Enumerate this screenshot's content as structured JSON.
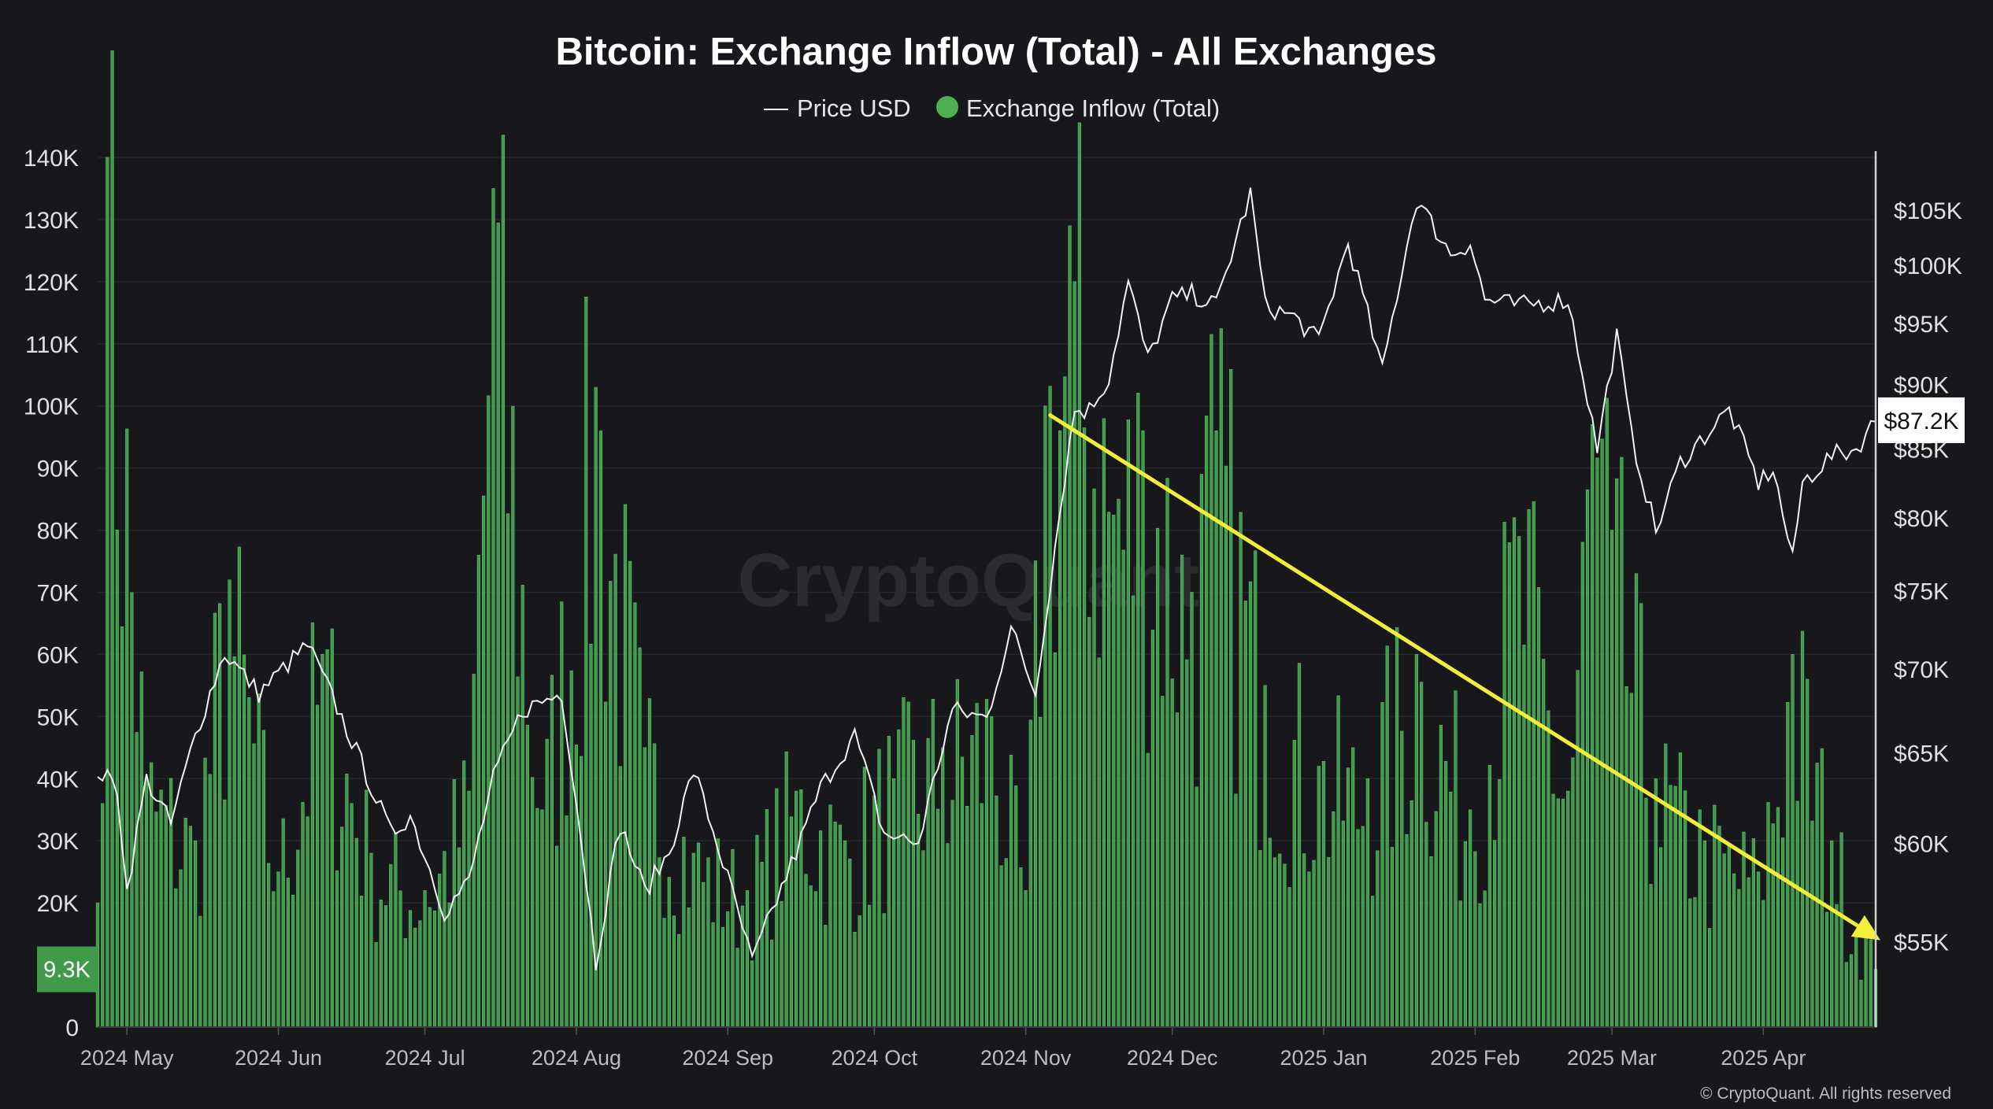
{
  "chart_data": {
    "type": "bar",
    "title": "Bitcoin: Exchange Inflow (Total) - All Exchanges",
    "legend": [
      {
        "name": "Price USD",
        "marker": "line",
        "color": "#ffffff"
      },
      {
        "name": "Exchange Inflow (Total)",
        "marker": "dot",
        "color": "#4caf50"
      }
    ],
    "watermark": "CryptoQuant",
    "copyright": "© CryptoQuant. All rights reserved",
    "left_axis": {
      "range": [
        0,
        140000
      ],
      "ticks": [
        {
          "value": 0,
          "label": "0"
        },
        {
          "value": 20000,
          "label": "20K"
        },
        {
          "value": 30000,
          "label": "30K"
        },
        {
          "value": 40000,
          "label": "40K"
        },
        {
          "value": 50000,
          "label": "50K"
        },
        {
          "value": 60000,
          "label": "60K"
        },
        {
          "value": 70000,
          "label": "70K"
        },
        {
          "value": 80000,
          "label": "80K"
        },
        {
          "value": 90000,
          "label": "90K"
        },
        {
          "value": 100000,
          "label": "100K"
        },
        {
          "value": 110000,
          "label": "110K"
        },
        {
          "value": 120000,
          "label": "120K"
        },
        {
          "value": 130000,
          "label": "130K"
        },
        {
          "value": 140000,
          "label": "140K"
        }
      ],
      "current_label": "9.3K",
      "current_value": 9300
    },
    "right_axis": {
      "scale": "log",
      "range": [
        51000,
        110000
      ],
      "ticks": [
        {
          "value": 55000,
          "label": "$55K"
        },
        {
          "value": 60000,
          "label": "$60K"
        },
        {
          "value": 65000,
          "label": "$65K"
        },
        {
          "value": 70000,
          "label": "$70K"
        },
        {
          "value": 75000,
          "label": "$75K"
        },
        {
          "value": 80000,
          "label": "$80K"
        },
        {
          "value": 85000,
          "label": "$85K"
        },
        {
          "value": 90000,
          "label": "$90K"
        },
        {
          "value": 95000,
          "label": "$95K"
        },
        {
          "value": 100000,
          "label": "$100K"
        },
        {
          "value": 105000,
          "label": "$105K"
        }
      ],
      "current_label": "$87.2K",
      "current_value": 87200
    },
    "x_axis": {
      "start": "2024-04-25",
      "end": "2025-04-24",
      "ticks": [
        {
          "date": "2024-05-01",
          "label": "2024 May"
        },
        {
          "date": "2024-06-01",
          "label": "2024 Jun"
        },
        {
          "date": "2024-07-01",
          "label": "2024 Jul"
        },
        {
          "date": "2024-08-01",
          "label": "2024 Aug"
        },
        {
          "date": "2024-09-01",
          "label": "2024 Sep"
        },
        {
          "date": "2024-10-01",
          "label": "2024 Oct"
        },
        {
          "date": "2024-11-01",
          "label": "2024 Nov"
        },
        {
          "date": "2024-12-01",
          "label": "2024 Dec"
        },
        {
          "date": "2025-01-01",
          "label": "2025 Jan"
        },
        {
          "date": "2025-02-01",
          "label": "2025 Feb"
        },
        {
          "date": "2025-03-01",
          "label": "2025 Mar"
        },
        {
          "date": "2025-04-01",
          "label": "2025 Apr"
        }
      ]
    },
    "inflow_keypoints": [
      [
        "2024-04-25",
        20000
      ],
      [
        "2024-04-27",
        140000
      ],
      [
        "2024-05-05",
        40000
      ],
      [
        "2024-05-15",
        30000
      ],
      [
        "2024-05-22",
        72000
      ],
      [
        "2024-06-01",
        25000
      ],
      [
        "2024-06-10",
        60000
      ],
      [
        "2024-06-20",
        28000
      ],
      [
        "2024-07-01",
        22000
      ],
      [
        "2024-07-10",
        38000
      ],
      [
        "2024-07-15",
        135000
      ],
      [
        "2024-07-25",
        35000
      ],
      [
        "2024-08-05",
        103000
      ],
      [
        "2024-08-15",
        45000
      ],
      [
        "2024-08-25",
        28000
      ],
      [
        "2024-09-05",
        22000
      ],
      [
        "2024-09-15",
        38000
      ],
      [
        "2024-09-25",
        30000
      ],
      [
        "2024-10-05",
        40000
      ],
      [
        "2024-10-15",
        45000
      ],
      [
        "2024-10-25",
        50000
      ],
      [
        "2024-11-01",
        22000
      ],
      [
        "2024-11-05",
        100000
      ],
      [
        "2024-11-11",
        120000
      ],
      [
        "2024-11-20",
        85000
      ],
      [
        "2024-11-25",
        96000
      ],
      [
        "2024-12-05",
        70000
      ],
      [
        "2024-12-10",
        96000
      ],
      [
        "2024-12-20",
        55000
      ],
      [
        "2024-12-31",
        42000
      ],
      [
        "2025-01-10",
        40000
      ],
      [
        "2025-01-20",
        60000
      ],
      [
        "2025-01-31",
        35000
      ],
      [
        "2025-02-10",
        79000
      ],
      [
        "2025-02-20",
        38000
      ],
      [
        "2025-02-25",
        97000
      ],
      [
        "2025-03-01",
        80000
      ],
      [
        "2025-03-10",
        40000
      ],
      [
        "2025-03-20",
        30000
      ],
      [
        "2025-03-31",
        25000
      ],
      [
        "2025-04-07",
        60000
      ],
      [
        "2025-04-15",
        30000
      ],
      [
        "2025-04-24",
        9300
      ]
    ],
    "price_keypoints": [
      [
        "2024-04-25",
        64000
      ],
      [
        "2024-04-29",
        63000
      ],
      [
        "2024-05-01",
        57500
      ],
      [
        "2024-05-05",
        63500
      ],
      [
        "2024-05-10",
        61000
      ],
      [
        "2024-05-15",
        66000
      ],
      [
        "2024-05-21",
        71000
      ],
      [
        "2024-05-28",
        68500
      ],
      [
        "2024-06-07",
        71500
      ],
      [
        "2024-06-14",
        67000
      ],
      [
        "2024-06-24",
        60500
      ],
      [
        "2024-06-28",
        61500
      ],
      [
        "2024-07-05",
        56500
      ],
      [
        "2024-07-10",
        58000
      ],
      [
        "2024-07-15",
        63500
      ],
      [
        "2024-07-21",
        67500
      ],
      [
        "2024-07-29",
        68500
      ],
      [
        "2024-08-05",
        54000
      ],
      [
        "2024-08-10",
        61000
      ],
      [
        "2024-08-15",
        57500
      ],
      [
        "2024-08-20",
        59500
      ],
      [
        "2024-08-25",
        64000
      ],
      [
        "2024-08-31",
        59000
      ],
      [
        "2024-09-06",
        54000
      ],
      [
        "2024-09-15",
        59500
      ],
      [
        "2024-09-20",
        63000
      ],
      [
        "2024-09-27",
        66000
      ],
      [
        "2024-10-03",
        60500
      ],
      [
        "2024-10-10",
        60000
      ],
      [
        "2024-10-17",
        67500
      ],
      [
        "2024-10-24",
        67000
      ],
      [
        "2024-10-29",
        72500
      ],
      [
        "2024-11-03",
        68500
      ],
      [
        "2024-11-06",
        75500
      ],
      [
        "2024-11-11",
        88000
      ],
      [
        "2024-11-14",
        88000
      ],
      [
        "2024-11-18",
        90500
      ],
      [
        "2024-11-22",
        98500
      ],
      [
        "2024-11-26",
        92000
      ],
      [
        "2024-12-01",
        97000
      ],
      [
        "2024-12-05",
        97500
      ],
      [
        "2024-12-10",
        96500
      ],
      [
        "2024-12-17",
        106500
      ],
      [
        "2024-12-20",
        96500
      ],
      [
        "2024-12-26",
        95500
      ],
      [
        "2024-12-31",
        93500
      ],
      [
        "2025-01-06",
        102000
      ],
      [
        "2025-01-13",
        91000
      ],
      [
        "2025-01-20",
        106000
      ],
      [
        "2025-01-27",
        101000
      ],
      [
        "2025-01-31",
        102000
      ],
      [
        "2025-02-03",
        97000
      ],
      [
        "2025-02-10",
        96500
      ],
      [
        "2025-02-20",
        97000
      ],
      [
        "2025-02-26",
        85000
      ],
      [
        "2025-03-02",
        94000
      ],
      [
        "2025-03-05",
        86000
      ],
      [
        "2025-03-10",
        79000
      ],
      [
        "2025-03-15",
        84000
      ],
      [
        "2025-03-20",
        86000
      ],
      [
        "2025-03-25",
        88000
      ],
      [
        "2025-03-31",
        82500
      ],
      [
        "2025-04-03",
        83500
      ],
      [
        "2025-04-07",
        77000
      ],
      [
        "2025-04-09",
        82500
      ],
      [
        "2025-04-15",
        84500
      ],
      [
        "2025-04-20",
        85000
      ],
      [
        "2025-04-24",
        87200
      ]
    ],
    "annotation_arrow": {
      "from": {
        "date": "2024-11-06",
        "inflow": 98500
      },
      "to": {
        "date": "2025-04-24",
        "inflow": 14000
      },
      "color": "#f2ee3a"
    }
  }
}
